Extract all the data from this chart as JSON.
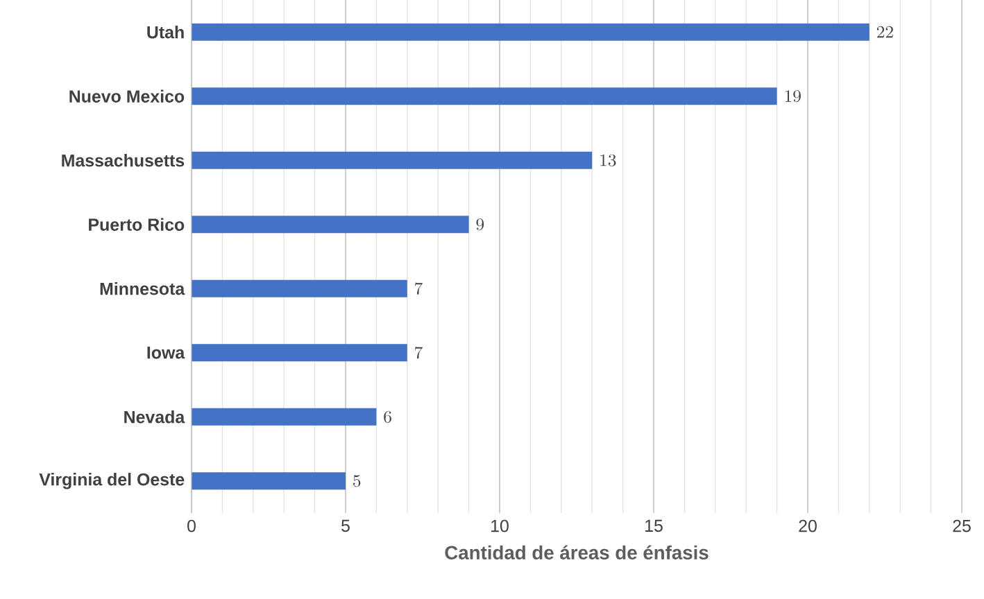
{
  "chart_data": {
    "type": "bar",
    "orientation": "horizontal",
    "xlabel": "Cantidad de áreas de énfasis",
    "categories": [
      "Utah",
      "Nuevo Mexico",
      "Massachusetts",
      "Puerto Rico",
      "Minnesota",
      "Iowa",
      "Nevada",
      "Virginia del Oeste"
    ],
    "values": [
      22,
      19,
      13,
      9,
      7,
      7,
      6,
      5
    ],
    "color": "#4472c4",
    "xlim": [
      0,
      25
    ],
    "xticks": [
      0,
      5,
      10,
      15,
      20,
      25
    ],
    "grid": "x",
    "data_labels": true
  }
}
